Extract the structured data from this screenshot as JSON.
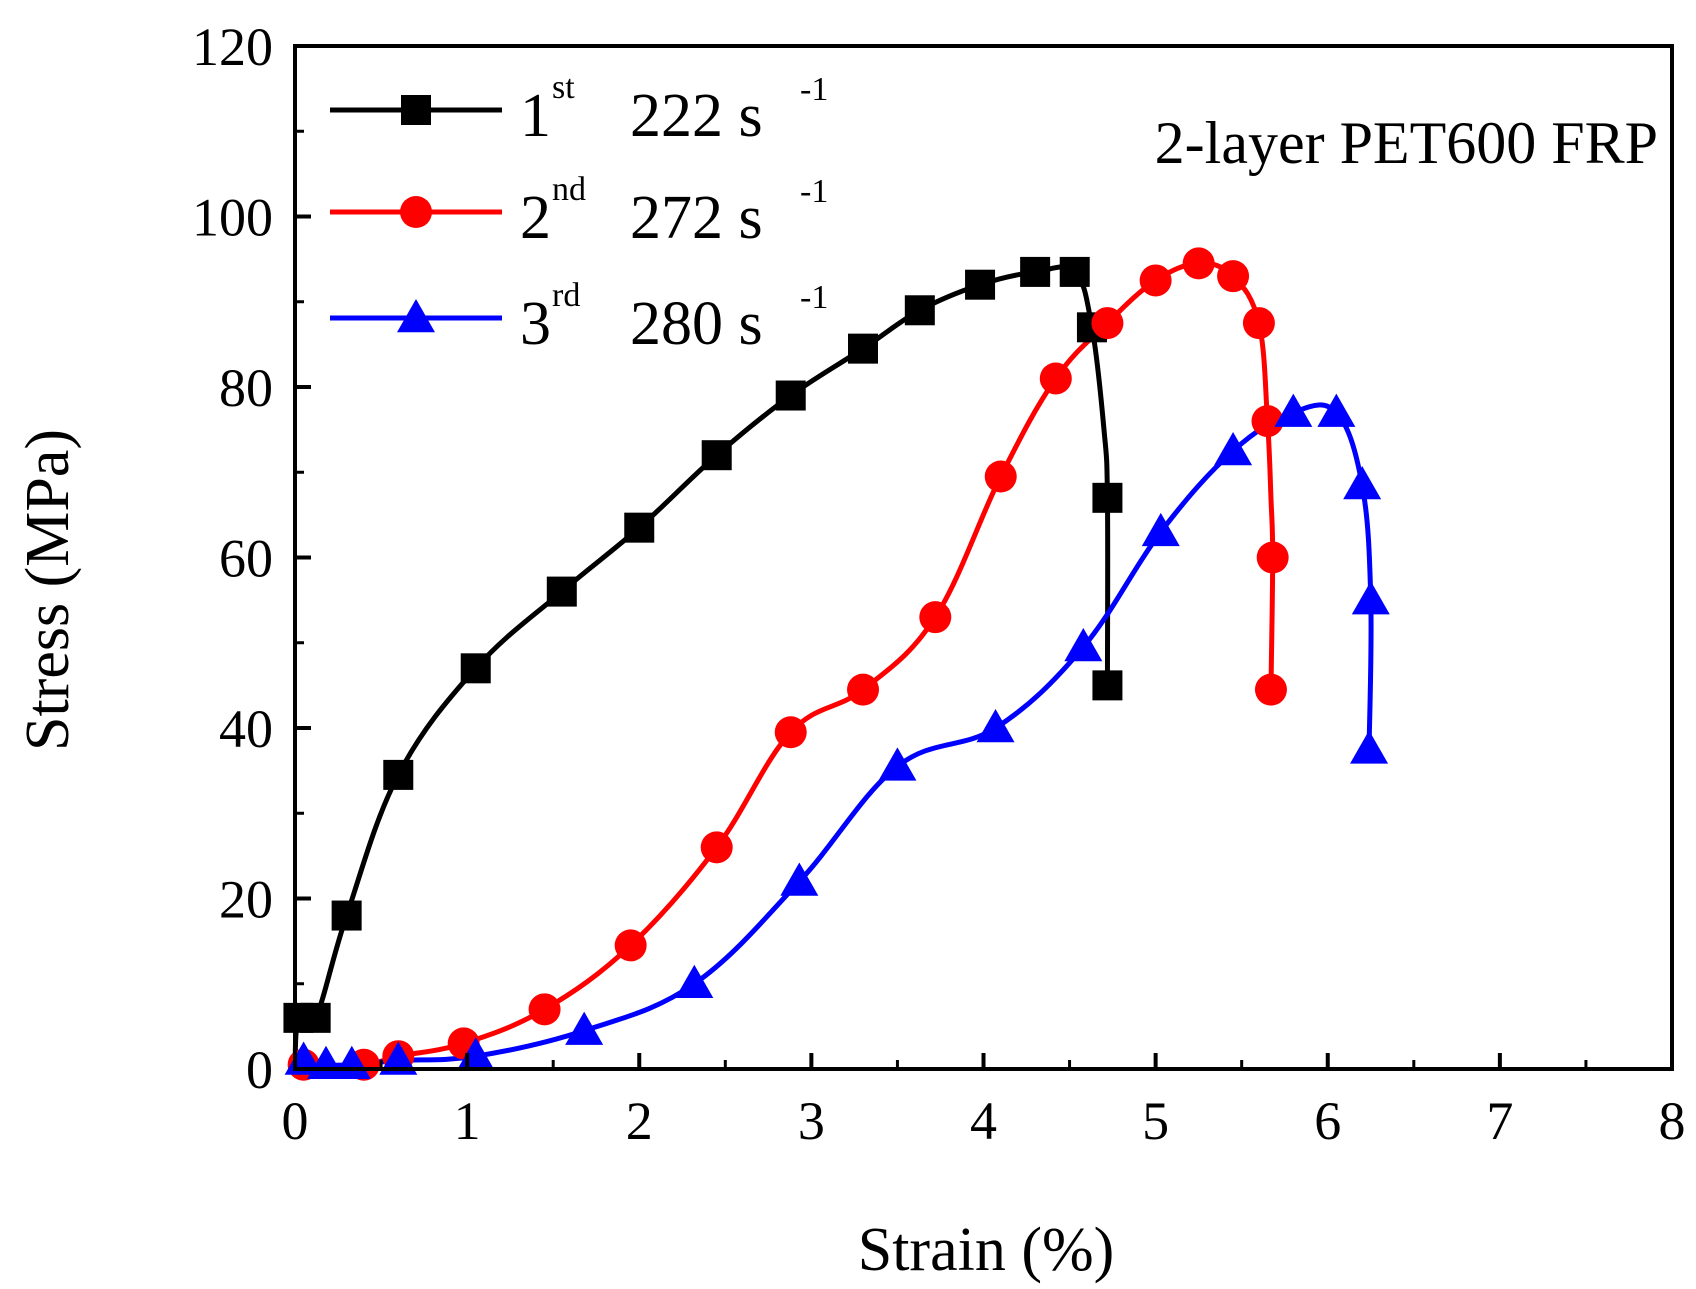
{
  "chart_data": {
    "type": "line",
    "title": "",
    "xlabel": "Strain (%)",
    "ylabel": "Stress (MPa)",
    "xlim": [
      0,
      8
    ],
    "ylim": [
      0,
      120
    ],
    "xticks": [
      0,
      1,
      2,
      3,
      4,
      5,
      6,
      7,
      8
    ],
    "yticks": [
      0,
      20,
      40,
      60,
      80,
      100,
      120
    ],
    "xtick_labels": [
      "0",
      "1",
      "2",
      "3",
      "4",
      "5",
      "6",
      "7",
      "8"
    ],
    "ytick_labels": [
      "0",
      "20",
      "40",
      "60",
      "80",
      "100",
      "120"
    ],
    "grid": false,
    "legend_position": "top-left",
    "annotation": "2-layer PET600 FRP",
    "series": [
      {
        "name": "1st 222 s-1",
        "legend_main": "1",
        "legend_sup": "st",
        "legend_rate": "222 s",
        "legend_rate_sup": "-1",
        "color": "#000000",
        "marker": "square",
        "x": [
          0.0,
          0.02,
          0.12,
          0.3,
          0.6,
          1.05,
          1.55,
          2.0,
          2.45,
          2.88,
          3.3,
          3.63,
          3.98,
          4.3,
          4.53,
          4.63,
          4.7,
          4.72,
          4.72
        ],
        "y": [
          0.5,
          6,
          6,
          18,
          34.5,
          47,
          56,
          63.5,
          72,
          79,
          84.5,
          89,
          92,
          93.5,
          93.5,
          87,
          75,
          67,
          45
        ],
        "marker_indices": [
          1,
          2,
          3,
          4,
          5,
          6,
          7,
          8,
          9,
          10,
          11,
          12,
          13,
          14,
          15,
          17,
          18
        ]
      },
      {
        "name": "2nd 272 s-1",
        "legend_main": "2",
        "legend_sup": "nd",
        "legend_rate": "272 s",
        "legend_rate_sup": "-1",
        "color": "#ff0000",
        "marker": "circle",
        "x": [
          0.05,
          0.4,
          0.6,
          0.98,
          1.45,
          1.95,
          2.45,
          2.88,
          3.3,
          3.72,
          4.1,
          4.42,
          4.72,
          5.0,
          5.25,
          5.45,
          5.6,
          5.65,
          5.67,
          5.68,
          5.67
        ],
        "y": [
          0.5,
          0.5,
          1.5,
          3,
          7,
          14.5,
          26,
          39.5,
          44.5,
          53,
          69.5,
          81,
          87.5,
          92.5,
          94.5,
          93,
          87.5,
          76,
          67,
          60,
          44.5
        ],
        "marker_indices": [
          0,
          1,
          2,
          3,
          4,
          5,
          6,
          7,
          8,
          9,
          10,
          11,
          12,
          13,
          14,
          15,
          16,
          17,
          19,
          20
        ]
      },
      {
        "name": "3rd 280 s-1",
        "legend_main": "3",
        "legend_sup": "rd",
        "legend_rate": "280 s",
        "legend_rate_sup": "-1",
        "color": "#0000ff",
        "marker": "triangle",
        "x": [
          0.05,
          0.18,
          0.33,
          0.6,
          1.05,
          1.68,
          2.32,
          2.93,
          3.5,
          4.07,
          4.58,
          5.03,
          5.45,
          5.8,
          6.05,
          6.2,
          6.25,
          6.24
        ],
        "y": [
          1,
          0.5,
          0.5,
          1,
          1.5,
          4.5,
          10,
          22,
          35.5,
          40,
          49.5,
          63,
          72.5,
          77,
          77,
          68.5,
          55,
          37.5
        ],
        "marker_indices": [
          0,
          1,
          2,
          3,
          4,
          5,
          6,
          7,
          8,
          9,
          10,
          11,
          12,
          13,
          14,
          15,
          16,
          17
        ]
      }
    ]
  },
  "chart_labels": {
    "xlabel": "Strain (%)",
    "ylabel": "Stress (MPa)",
    "annotation": "2-layer PET600 FRP"
  }
}
